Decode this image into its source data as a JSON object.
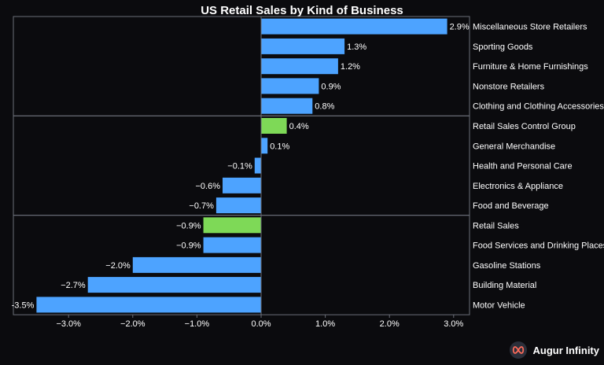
{
  "chart_data": {
    "type": "bar",
    "orientation": "horizontal",
    "title": "US Retail Sales by Kind of Business",
    "xlim": [
      -3.5,
      3.2
    ],
    "xticks": [
      {
        "value": -3.0,
        "label": "−3.0%"
      },
      {
        "value": -2.0,
        "label": "−2.0%"
      },
      {
        "value": -1.0,
        "label": "−1.0%"
      },
      {
        "value": 0.0,
        "label": "0.0%"
      },
      {
        "value": 1.0,
        "label": "1.0%"
      },
      {
        "value": 2.0,
        "label": "2.0%"
      },
      {
        "value": 3.0,
        "label": "3.0%"
      }
    ],
    "groups": [
      {
        "items": [
          {
            "category": "Miscellaneous Store Retailers",
            "value": 2.9,
            "label": "2.9%",
            "highlight": false
          },
          {
            "category": "Sporting Goods",
            "value": 1.3,
            "label": "1.3%",
            "highlight": false
          },
          {
            "category": "Furniture & Home Furnishings",
            "value": 1.2,
            "label": "1.2%",
            "highlight": false
          },
          {
            "category": "Nonstore Retailers",
            "value": 0.9,
            "label": "0.9%",
            "highlight": false
          },
          {
            "category": "Clothing and Clothing Accessories",
            "value": 0.8,
            "label": "0.8%",
            "highlight": false
          }
        ]
      },
      {
        "items": [
          {
            "category": "Retail Sales Control Group",
            "value": 0.4,
            "label": "0.4%",
            "highlight": true
          },
          {
            "category": "General Merchandise",
            "value": 0.1,
            "label": "0.1%",
            "highlight": false
          },
          {
            "category": "Health and Personal Care",
            "value": -0.1,
            "label": "−0.1%",
            "highlight": false
          },
          {
            "category": "Electronics & Appliance",
            "value": -0.6,
            "label": "−0.6%",
            "highlight": false
          },
          {
            "category": "Food and Beverage",
            "value": -0.7,
            "label": "−0.7%",
            "highlight": false
          }
        ]
      },
      {
        "items": [
          {
            "category": "Retail Sales",
            "value": -0.9,
            "label": "−0.9%",
            "highlight": true
          },
          {
            "category": "Food Services and Drinking Places",
            "value": -0.9,
            "label": "−0.9%",
            "highlight": false
          },
          {
            "category": "Gasoline Stations",
            "value": -2.0,
            "label": "−2.0%",
            "highlight": false
          },
          {
            "category": "Building Material",
            "value": -2.7,
            "label": "−2.7%",
            "highlight": false
          },
          {
            "category": "Motor Vehicle",
            "value": -3.5,
            "label": "-3.5%",
            "highlight": false
          }
        ]
      }
    ],
    "colors": {
      "bar": "#4da3ff",
      "highlight": "#7ed957",
      "background": "#0b0b0e",
      "frame": "#6b6f78",
      "text": "#ffffff"
    }
  },
  "brand": {
    "name": "Augur Infinity",
    "icon": "infinity-logo-icon"
  }
}
